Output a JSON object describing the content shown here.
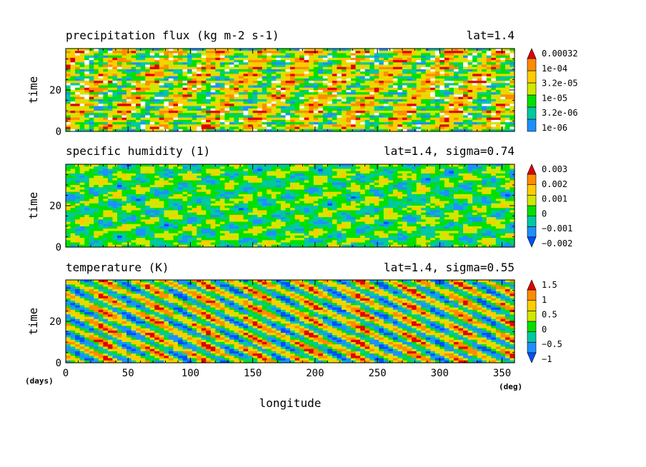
{
  "chart_data": [
    {
      "type": "heatmap",
      "title": "precipitation flux (kg m-2 s-1)",
      "subtitle": "lat=1.4",
      "ylabel": "time",
      "xlim": [
        0,
        360
      ],
      "ylim": [
        0,
        40
      ],
      "yticks": [
        0,
        20
      ],
      "colorbar": {
        "labels": [
          "0.00032",
          "1e-04",
          "3.2e-05",
          "1e-05",
          "3.2e-06",
          "1e-06"
        ],
        "colors": [
          "#1e90ff",
          "#00c8a0",
          "#00e000",
          "#d0e800",
          "#ffcc00",
          "#ff8c00",
          "#e00000"
        ],
        "extend": "max"
      }
    },
    {
      "type": "heatmap",
      "title": "specific humidity (1)",
      "subtitle": "lat=1.4, sigma=0.74",
      "ylabel": "time",
      "xlim": [
        0,
        360
      ],
      "ylim": [
        0,
        40
      ],
      "yticks": [
        0,
        20
      ],
      "colorbar": {
        "labels": [
          "0.003",
          "0.002",
          "0.001",
          "0",
          "−0.001",
          "−0.002"
        ],
        "colors": [
          "#0050ff",
          "#1e90ff",
          "#00c8a0",
          "#00e000",
          "#d0e800",
          "#ffcc00",
          "#ff8c00",
          "#e00000"
        ],
        "extend": "both"
      }
    },
    {
      "type": "heatmap",
      "title": "temperature (K)",
      "subtitle": "lat=1.4, sigma=0.55",
      "ylabel": "time",
      "xlabel": "longitude",
      "xlim": [
        0,
        360
      ],
      "ylim": [
        0,
        40
      ],
      "xticks": [
        0,
        50,
        100,
        150,
        200,
        250,
        300,
        350
      ],
      "yticks": [
        0,
        20
      ],
      "x_unit": "(deg)",
      "y_unit": "(days)",
      "colorbar": {
        "labels": [
          "1.5",
          "1",
          "0.5",
          "0",
          "−0.5",
          "−1"
        ],
        "colors": [
          "#0050ff",
          "#1e90ff",
          "#00c8a0",
          "#00e000",
          "#d0e800",
          "#ffcc00",
          "#ff8c00",
          "#e00000"
        ],
        "extend": "both"
      }
    }
  ]
}
